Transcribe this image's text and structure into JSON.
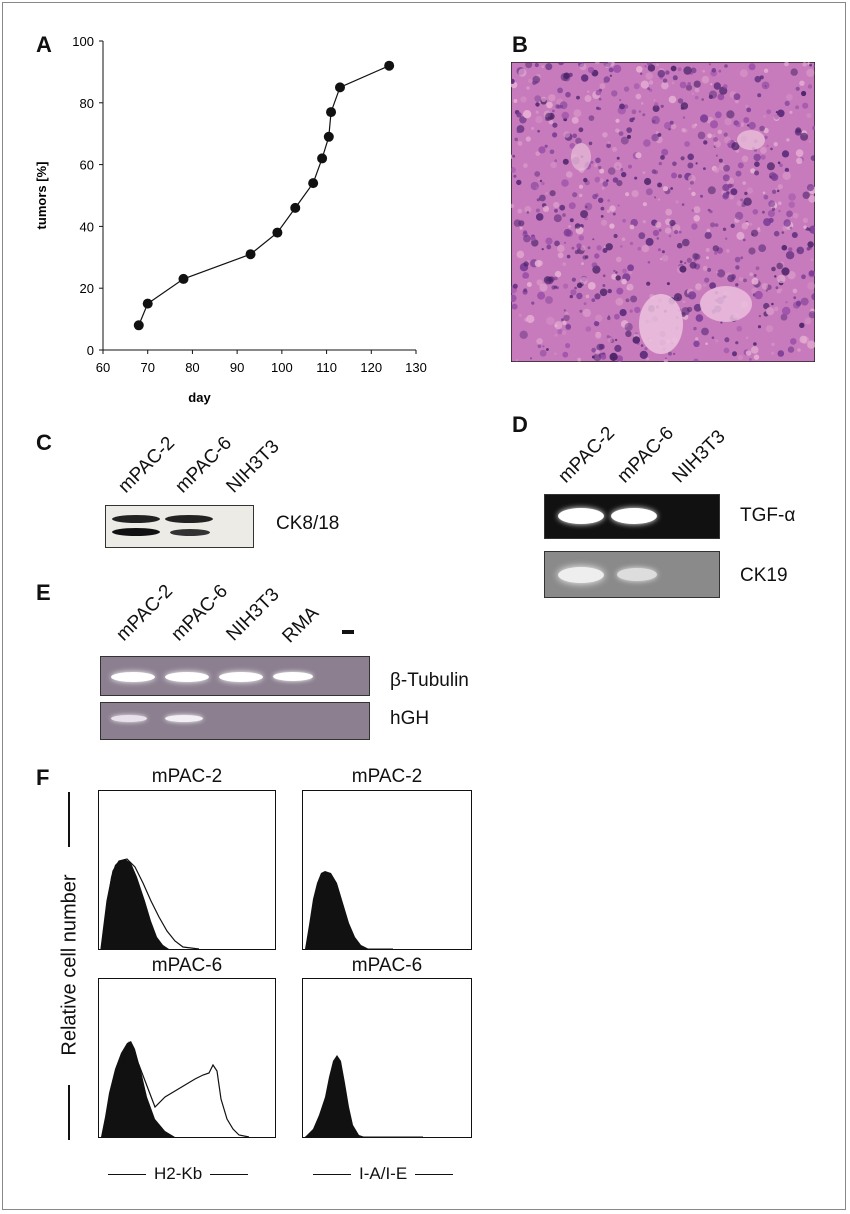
{
  "panels": {
    "A": "A",
    "B": "B",
    "C": "C",
    "D": "D",
    "E": "E",
    "F": "F"
  },
  "chart_data": {
    "type": "line",
    "xlabel": "day",
    "ylabel": "tumors [%]",
    "xlim": [
      60,
      130
    ],
    "ylim": [
      0,
      100
    ],
    "x_ticks": [
      60,
      70,
      80,
      90,
      100,
      110,
      120,
      130
    ],
    "y_ticks": [
      0,
      20,
      40,
      60,
      80,
      100
    ],
    "x": [
      68,
      70,
      78,
      93,
      99,
      103,
      107,
      109,
      110.5,
      111,
      113,
      124
    ],
    "values": [
      8,
      15,
      23,
      31,
      38,
      46,
      54,
      62,
      69,
      77,
      85,
      92
    ]
  },
  "panel_c": {
    "lanes": [
      "mPAC-2",
      "mPAC-6",
      "NIH3T3"
    ],
    "row_label": "CK8/18"
  },
  "panel_d": {
    "lanes": [
      "mPAC-2",
      "mPAC-6",
      "NIH3T3"
    ],
    "rows": [
      "TGF-α",
      "CK19"
    ]
  },
  "panel_e": {
    "lanes": [
      "mPAC-2",
      "mPAC-6",
      "NIH3T3",
      "RMA",
      "-"
    ],
    "rows": [
      "β-Tubulin",
      "hGH"
    ]
  },
  "panel_f": {
    "ylabel": "Relative cell number",
    "top_left": "mPAC-2",
    "top_right": "mPAC-2",
    "bottom_left": "mPAC-6",
    "bottom_right": "mPAC-6",
    "xlabel_left": "H2-Kb",
    "xlabel_right": "I-A/I-E"
  }
}
